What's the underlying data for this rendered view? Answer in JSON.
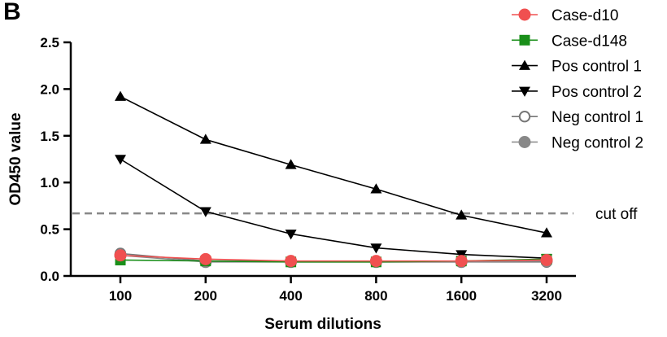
{
  "panel_label": "B",
  "chart_data": {
    "type": "line",
    "xlabel": "Serum dilutions",
    "ylabel": "OD450 value",
    "categories": [
      "100",
      "200",
      "400",
      "800",
      "1600",
      "3200"
    ],
    "ylim": [
      0,
      2.5
    ],
    "yticks": [
      "0.0",
      "0.5",
      "1.0",
      "1.5",
      "2.0",
      "2.5"
    ],
    "grid": false,
    "legend_position": "right",
    "series": [
      {
        "name": "Case-d10",
        "values": [
          0.22,
          0.18,
          0.16,
          0.16,
          0.16,
          0.17
        ],
        "color": "#f05050",
        "marker": "circle-filled"
      },
      {
        "name": "Case-d148",
        "values": [
          0.17,
          0.16,
          0.15,
          0.15,
          0.16,
          0.18
        ],
        "color": "#1a8f1a",
        "marker": "square"
      },
      {
        "name": "Pos control 1",
        "values": [
          1.92,
          1.46,
          1.19,
          0.93,
          0.65,
          0.46
        ],
        "color": "#000000",
        "marker": "triangle-up"
      },
      {
        "name": "Pos control 2",
        "values": [
          1.25,
          0.69,
          0.45,
          0.3,
          0.23,
          0.19
        ],
        "color": "#000000",
        "marker": "triangle-down"
      },
      {
        "name": "Neg control 1",
        "values": [
          0.24,
          0.16,
          0.16,
          0.15,
          0.15,
          0.15
        ],
        "color": "#777777",
        "marker": "circle-open"
      },
      {
        "name": "Neg control 2",
        "values": [
          0.22,
          0.15,
          0.15,
          0.15,
          0.15,
          0.16
        ],
        "color": "#888888",
        "marker": "circle-filled"
      }
    ],
    "reference_line": {
      "value": 0.67,
      "label": "cut off",
      "style": "dashed",
      "color": "#888888"
    }
  }
}
